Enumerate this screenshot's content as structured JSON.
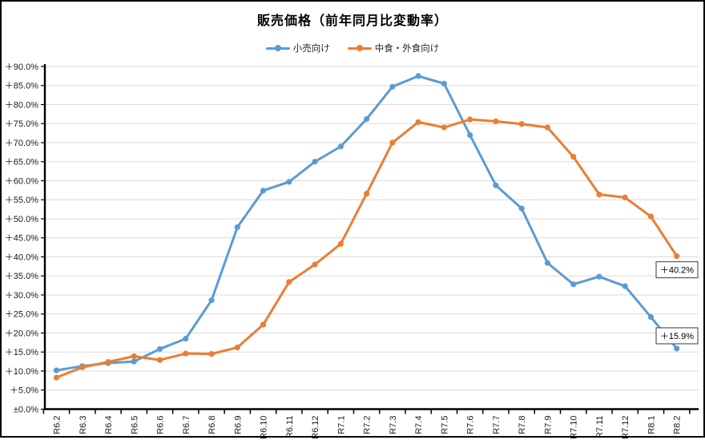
{
  "window": {
    "background": "#ffffff",
    "frame_border": "#000000"
  },
  "chart_data": {
    "type": "line",
    "title": "販売価格（前年同月比変動率）",
    "categories": [
      "R6.2",
      "R6.3",
      "R6.4",
      "R6.5",
      "R6.6",
      "R6.7",
      "R6.8",
      "R6.9",
      "R6.10",
      "R6.11",
      "R6.12",
      "R7.1",
      "R7.2",
      "R7.3",
      "R7.4",
      "R7.5",
      "R7.6",
      "R7.7",
      "R7.8",
      "R7.9",
      "R7.10",
      "R7.11",
      "R7.12",
      "R8.1",
      "R8.2"
    ],
    "series": [
      {
        "name": "小売向け",
        "color": "#5B9BD5",
        "marker": "circle",
        "values": [
          10.2,
          11.3,
          12.1,
          12.5,
          15.8,
          18.5,
          28.6,
          47.8,
          57.4,
          59.7,
          65.0,
          69.0,
          76.2,
          84.7,
          87.5,
          85.5,
          72.0,
          58.8,
          52.7,
          38.4,
          32.8,
          34.8,
          32.3,
          24.2,
          15.9
        ]
      },
      {
        "name": "中食・外食向け",
        "color": "#ED7D31",
        "marker": "circle",
        "values": [
          8.3,
          11.0,
          12.4,
          13.9,
          12.9,
          14.6,
          14.5,
          16.2,
          22.2,
          33.4,
          38.0,
          43.4,
          56.6,
          70.0,
          75.4,
          74.0,
          76.1,
          75.6,
          74.9,
          74.0,
          66.3,
          56.4,
          55.6,
          50.6,
          40.2
        ]
      }
    ],
    "xlabel": "",
    "ylabel": "",
    "ylim": [
      0,
      90
    ],
    "ytick_step": 5,
    "ytick_labels": [
      "±0.0%",
      "＋5.0%",
      "＋10.0%",
      "＋15.0%",
      "＋20.0%",
      "＋25.0%",
      "＋30.0%",
      "＋35.0%",
      "＋40.0%",
      "＋45.0%",
      "＋50.0%",
      "＋55.0%",
      "＋60.0%",
      "＋65.0%",
      "＋70.0%",
      "＋75.0%",
      "＋80.0%",
      "＋85.0%",
      "＋90.0%"
    ],
    "xtick_rotation": 90,
    "grid": true,
    "gridline_color": "#D9D9D9",
    "legend_position": "top",
    "annotations": [
      {
        "series_index": 1,
        "point_index": 24,
        "label": "＋40.2%"
      },
      {
        "series_index": 0,
        "point_index": 24,
        "label": "＋15.9%"
      }
    ]
  }
}
